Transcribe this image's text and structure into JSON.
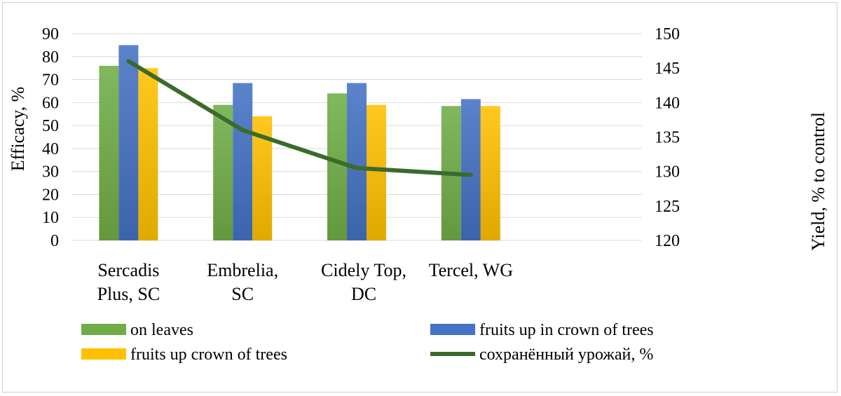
{
  "chart_data": {
    "type": "bar",
    "categories": [
      [
        "Sercadis",
        "Plus, SC"
      ],
      [
        "Embrelia,",
        "SC"
      ],
      [
        "Cidely Top,",
        "DC"
      ],
      [
        "Tercel, WG",
        ""
      ]
    ],
    "series": [
      {
        "name": "on leaves",
        "values": [
          76,
          59,
          64,
          58.5
        ],
        "color": "#70ad47",
        "axis": "left"
      },
      {
        "name": "fruits up in crown of trees",
        "values": [
          85,
          68.5,
          68.5,
          61.5
        ],
        "color": "#4472c4",
        "axis": "left"
      },
      {
        "name": "fruits up crown of trees",
        "values": [
          75,
          54,
          59,
          58.5
        ],
        "color": "#ffc000",
        "axis": "left"
      }
    ],
    "line_series": {
      "name": "сохранённый урожай, %",
      "values": [
        146,
        136,
        130.5,
        129.5
      ],
      "color": "#3b6b2a",
      "axis": "right"
    },
    "ylabel": "Efficacy, %",
    "y2label": "Yield, % to control",
    "ylim": [
      0,
      90
    ],
    "y_ticks": [
      "0",
      "10",
      "20",
      "30",
      "40",
      "50",
      "60",
      "70",
      "80",
      "90"
    ],
    "y2lim": [
      120,
      150
    ],
    "y2_ticks": [
      "120",
      "125",
      "130",
      "135",
      "140",
      "145",
      "150"
    ],
    "grid": true,
    "legend_position": "bottom"
  }
}
